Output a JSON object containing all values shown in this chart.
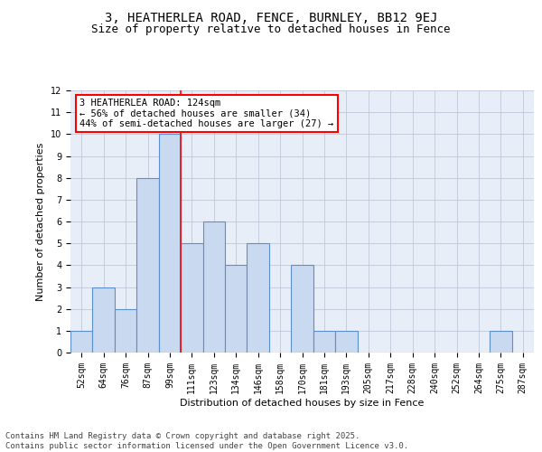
{
  "title_line1": "3, HEATHERLEA ROAD, FENCE, BURNLEY, BB12 9EJ",
  "title_line2": "Size of property relative to detached houses in Fence",
  "xlabel": "Distribution of detached houses by size in Fence",
  "ylabel": "Number of detached properties",
  "bar_labels": [
    "52sqm",
    "64sqm",
    "76sqm",
    "87sqm",
    "99sqm",
    "111sqm",
    "123sqm",
    "134sqm",
    "146sqm",
    "158sqm",
    "170sqm",
    "181sqm",
    "193sqm",
    "205sqm",
    "217sqm",
    "228sqm",
    "240sqm",
    "252sqm",
    "264sqm",
    "275sqm",
    "287sqm"
  ],
  "bar_values": [
    1,
    3,
    2,
    8,
    10,
    5,
    6,
    4,
    5,
    0,
    4,
    1,
    1,
    0,
    0,
    0,
    0,
    0,
    0,
    1,
    0
  ],
  "bar_color": "#c9d9f0",
  "bar_edge_color": "#5b8fcf",
  "bar_edge_width": 0.8,
  "grid_color": "#c0c8d8",
  "bg_color": "#e8eef8",
  "annotation_text": "3 HEATHERLEA ROAD: 124sqm\n← 56% of detached houses are smaller (34)\n44% of semi-detached houses are larger (27) →",
  "annotation_box_color": "white",
  "annotation_box_edge_color": "red",
  "vline_x_index": 5,
  "vline_color": "red",
  "vline_linewidth": 1.2,
  "ylim": [
    0,
    12
  ],
  "yticks": [
    0,
    1,
    2,
    3,
    4,
    5,
    6,
    7,
    8,
    9,
    10,
    11,
    12
  ],
  "footer_text": "Contains HM Land Registry data © Crown copyright and database right 2025.\nContains public sector information licensed under the Open Government Licence v3.0.",
  "title_fontsize": 10,
  "subtitle_fontsize": 9,
  "axis_label_fontsize": 8,
  "tick_fontsize": 7,
  "annotation_fontsize": 7.5,
  "footer_fontsize": 6.5
}
